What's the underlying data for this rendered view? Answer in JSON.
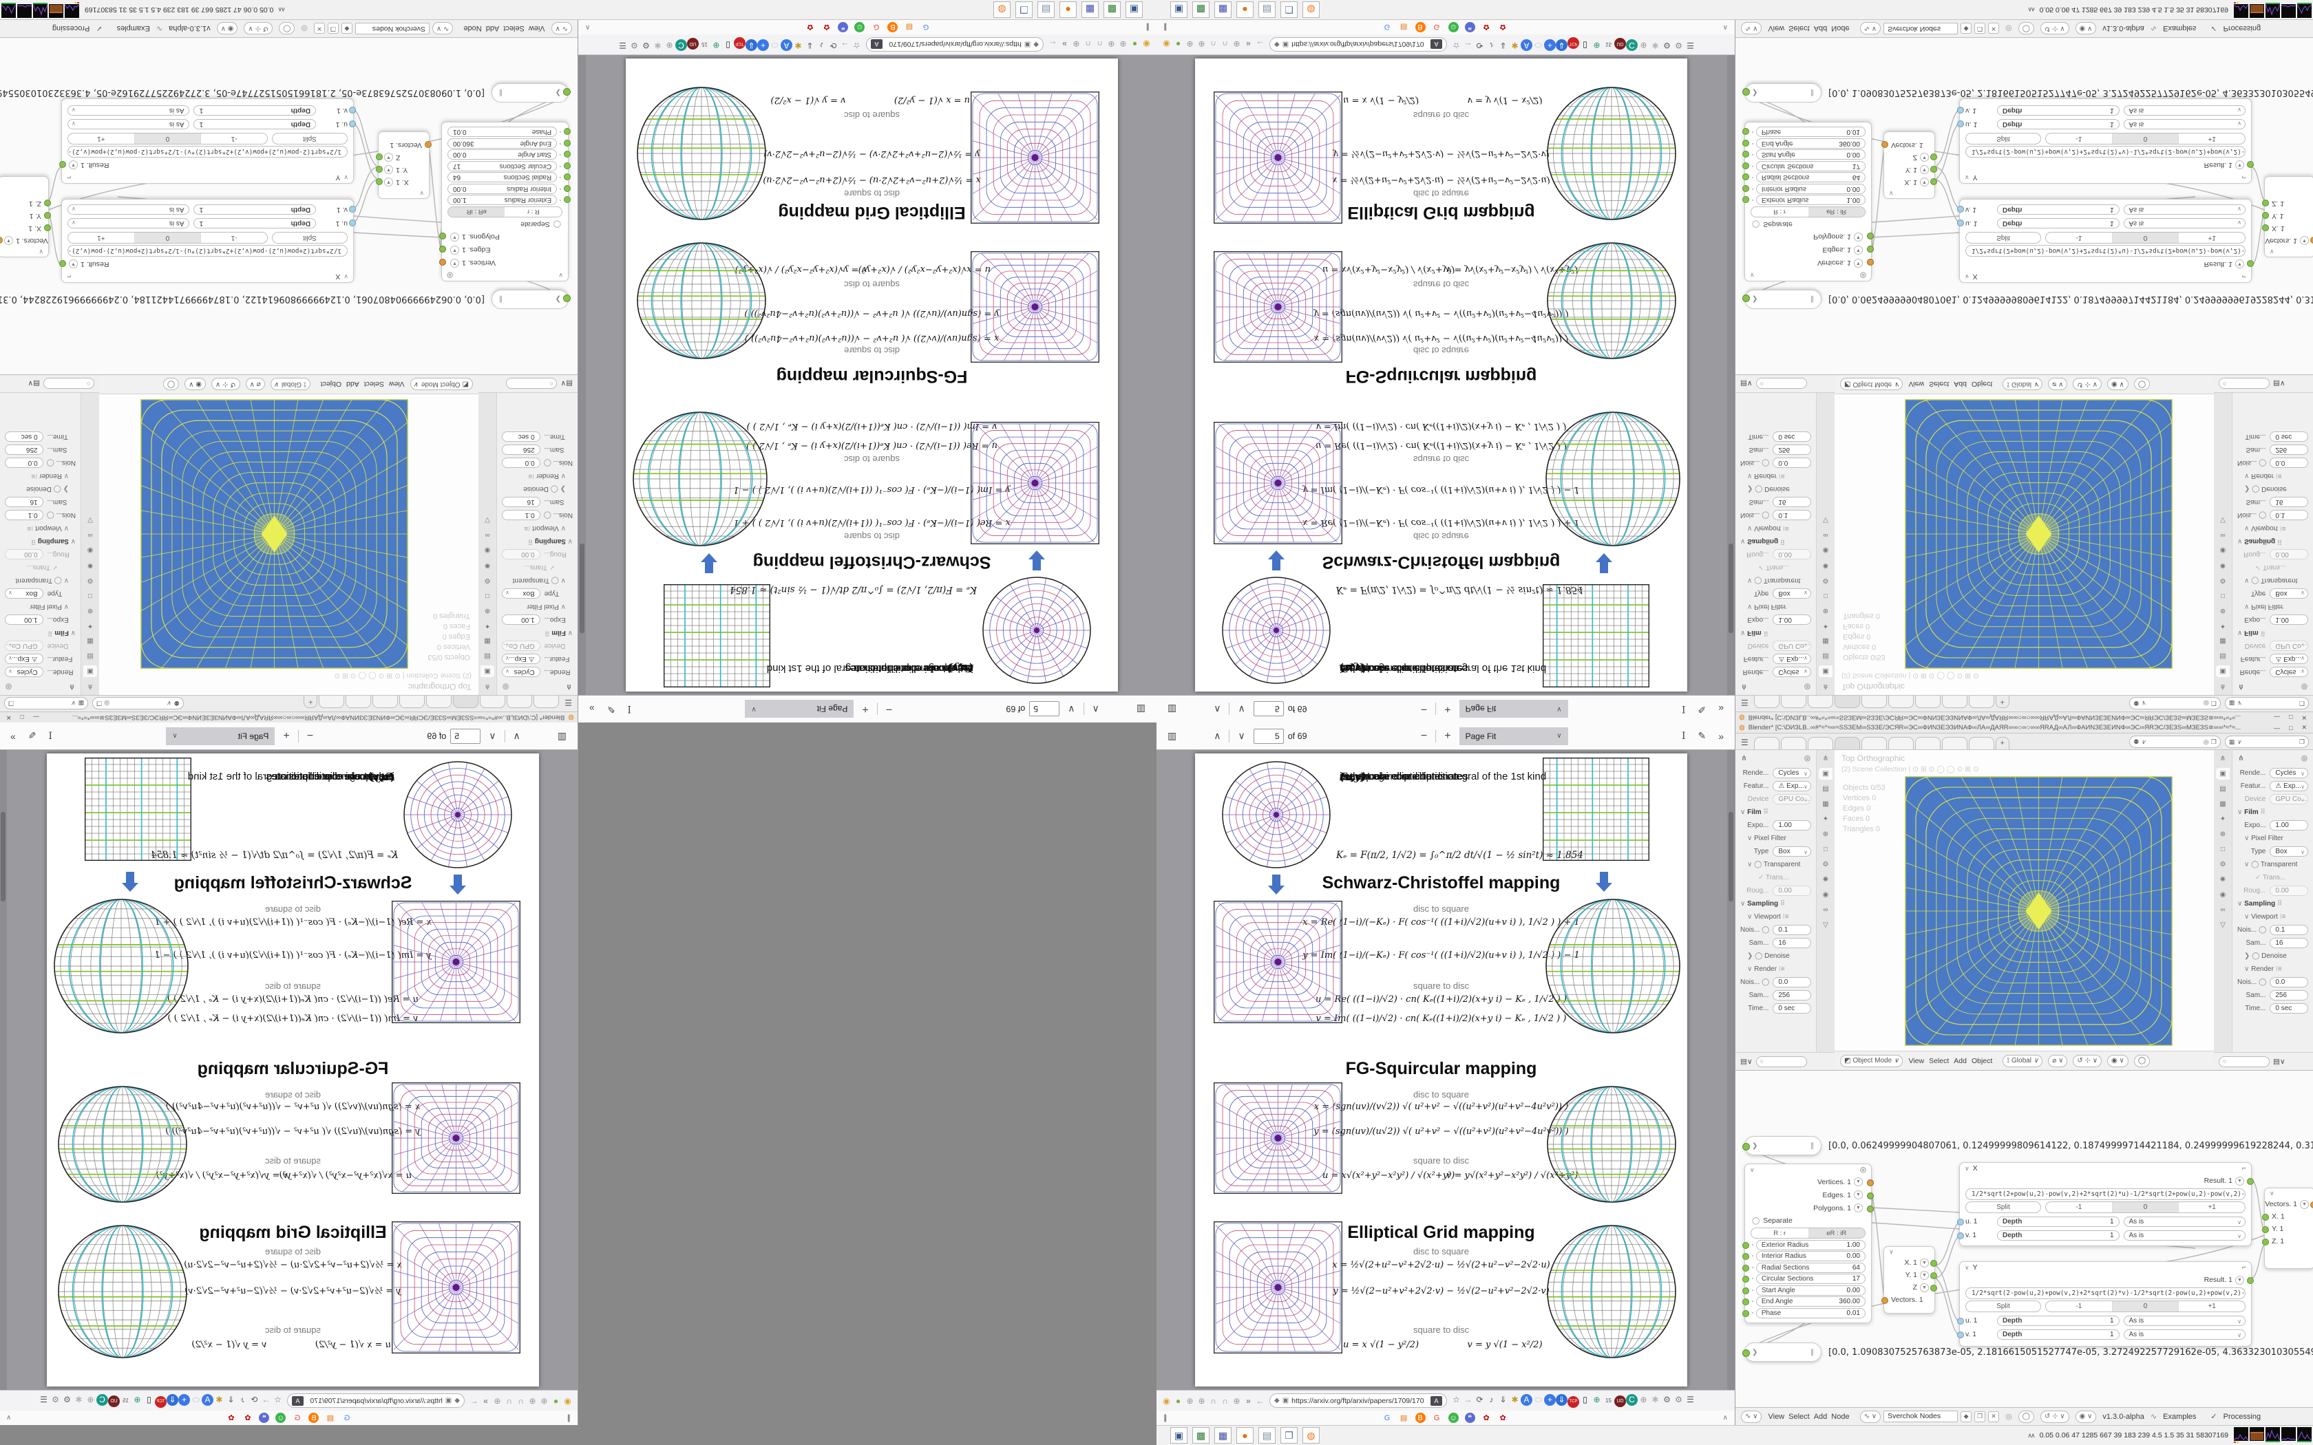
{
  "pdf": {
    "toolbar": {
      "page": "5",
      "of": "of 69",
      "fit": "Page Fit"
    },
    "page": {
      "hdr": [
        {
          "b": "(u,v)",
          "r": "  are circular disc coordinates"
        },
        {
          "b": "(x,y)",
          "r": "  are square coordinates"
        },
        {
          "b": "F",
          "r": "  is the Legendre elliptic integral of the 1st kind"
        },
        {
          "b": "cn",
          "r": "  is a Jacobi elliptic function"
        }
      ],
      "ke": "Kₑ = F(π/2, 1/√2) = ∫₀^π/2 dt/√(1 − ½ sin²t)  ≈ 1.854",
      "sections": [
        {
          "title": "Schwarz-Christoffel mapping",
          "d2s": "disc to square",
          "s2d": "square to disc",
          "fx": "x = Re( (1−i)/(−Kₑ) · F( cos⁻¹( ((1+i)/√2)(u+v i) ), 1/√2 ) ) + 1",
          "fy": "y = Im( (1−i)/(−Kₑ) · F( cos⁻¹( ((1+i)/√2)(u+v i) ), 1/√2 ) ) − 1",
          "fu": "u = Re( ((1−i)/√2) · cn( Kₑ((1+i)/2)(x+y i) − Kₑ , 1/√2 ) )",
          "fv": "v = Im( ((1−i)/√2) · cn( Kₑ((1+i)/2)(x+y i) − Kₑ , 1/√2 ) )"
        },
        {
          "title": "FG-Squircular mapping",
          "d2s": "disc to square",
          "s2d": "square to disc",
          "fx": "x = (sgn(uv)/(v√2)) √( u²+v² − √((u²+v²)(u²+v²−4u²v²)) )",
          "fy": "y = (sgn(uv)/(u√2)) √( u²+v² − √((u²+v²)(u²+v²−4u²v²)) )",
          "fu": "u = x√(x²+y²−x²y²) / √(x²+y²)",
          "fv": "v = y√(x²+y²−x²y²) / √(x²+y²)"
        },
        {
          "title": "Elliptical Grid mapping",
          "d2s": "disc to square",
          "s2d": "square to disc",
          "fx": "x = ½√(2+u²−v²+2√2·u) − ½√(2+u²−v²−2√2·u)",
          "fy": "y = ½√(2−u²+v²+2√2·v) − ½√(2−u²+v²−2√2·v)",
          "fu": "u = x √(1 − y²/2)",
          "fv": "v = y √(1 − x²/2)"
        }
      ]
    }
  },
  "firefox": {
    "url": "https://arxiv.org/ftp/arxiv/papers/1709/170",
    "translate_badge": "A",
    "nav_left": [
      {
        "g": "◉",
        "c": "#d9a62e"
      },
      {
        "g": "●",
        "c": "#76b043"
      },
      {
        "g": "⊕",
        "c": "#9a9a9a"
      },
      {
        "g": "⊕",
        "c": "#9a9a9a"
      },
      {
        "g": "∩",
        "c": "#8a8a8a"
      },
      {
        "g": "∩",
        "c": "#8a8a8a"
      },
      {
        "g": "⊕",
        "c": "#9a9a9a"
      },
      {
        "g": "»",
        "c": "#666666"
      },
      {
        "g": "←",
        "c": "#9a9a9a"
      }
    ],
    "nav_right": [
      {
        "g": "☆",
        "c": "#666"
      },
      {
        "g": "→",
        "c": "#9a9a9a"
      },
      {
        "g": "⟳",
        "c": "#555"
      },
      {
        "g": "♪",
        "c": "#555"
      },
      {
        "g": "⇓",
        "c": "#555"
      },
      {
        "g": "✱",
        "c": "#c49a2a"
      },
      {
        "g": "A",
        "c": "#fff",
        "b": "#3b78e7"
      },
      {
        "g": "⬭",
        "c": "#bbb"
      },
      {
        "g": "+",
        "c": "#fff",
        "b": "#3b78e7"
      },
      {
        "g": "⇓",
        "c": "#fff",
        "b": "#2f6fd6"
      },
      {
        "g": "TCP",
        "c": "#fff",
        "b": "#cc2222",
        "s": "6px"
      },
      {
        "g": "▯",
        "c": "#222"
      },
      {
        "g": "⊕",
        "c": "#2a9a6a"
      },
      {
        "g": "15",
        "c": "#555",
        "s": "8px"
      },
      {
        "g": "UD",
        "c": "#fff",
        "b": "#7a1f1f",
        "s": "7px"
      },
      {
        "g": "C",
        "c": "#fff",
        "b": "#1a9988"
      },
      {
        "g": "⊕",
        "c": "#999"
      },
      {
        "g": "✱",
        "c": "#b7b7b7"
      },
      {
        "g": "⚙",
        "c": "#666"
      },
      {
        "g": "⚙",
        "c": "#888"
      },
      {
        "g": "☰",
        "c": "#555"
      }
    ],
    "bookmarks": [
      {
        "g": "G",
        "c": "#4285f4"
      },
      {
        "g": "▤",
        "c": "#e8740c"
      },
      {
        "g": "B",
        "c": "#fff",
        "b": "#ff7b00"
      },
      {
        "g": "G",
        "c": "#ea4335"
      },
      {
        "g": "☺",
        "c": "#fff",
        "b": "#3bb54a"
      },
      {
        "g": "❝",
        "c": "#fff",
        "b": "#5b6bd6"
      },
      {
        "g": "✿",
        "c": "#c00000"
      },
      {
        "g": "✿",
        "c": "#c00000"
      }
    ],
    "pause_glyph": "∥",
    "collapse_glyph": "∧"
  },
  "taskbar": {
    "apps": [
      {
        "g": "▣",
        "c": "#3a5a8c"
      },
      {
        "g": "▩",
        "c": "#2f7d32"
      },
      {
        "g": "▦",
        "c": "#3949ab"
      },
      {
        "g": "●",
        "c": "#e8710a"
      },
      {
        "g": "▤",
        "c": "#7a8aa0"
      },
      {
        "g": "❐",
        "c": "#5472a8"
      },
      {
        "g": "◍",
        "c": "#ee7722"
      }
    ],
    "stats": "0.05 0.06   47   1285 667   39   183   239   4.5   1.5   35   31   58307169"
  },
  "blender": {
    "title": "Blender* [C:\\DИЗLB..∞#*≈*≈∞≈SSЗEM∞SЗЗE/ЭСЯR∞ЭС∞ФИNЗЕЭЗИNАФ∞ЛА∞ДАЯR∞∞○∞○∞∞ЯRАД∞АЛ∞ФАИNЗЕЗЕИNФ∞ЭС∞ЯRЭС/ЗЕЗS∞МЗЕЗS≅∞∞*≈*≈...",
    "tabs": [
      "",
      "",
      "",
      "",
      "",
      "",
      "",
      "",
      ""
    ],
    "props": {
      "tabs": [
        "⋔",
        "▣",
        "▤",
        "▦",
        "✦",
        "⊕",
        "□",
        "⚙",
        "✺",
        "◉",
        "∞",
        "▽"
      ],
      "rows": [
        {
          "k": "dd",
          "l": "Rende...",
          "v": "Cycles"
        },
        {
          "k": "dd",
          "l": "Featur...",
          "v": "⚠ Exp..."
        },
        {
          "k": "dd dis",
          "l": "Device",
          "v": "GPU Co..."
        },
        {
          "k": "sec",
          "l": "Film"
        },
        {
          "k": "num",
          "l": "Expo...",
          "v": "1.00"
        },
        {
          "k": "sub",
          "l": "Pixel Filter"
        },
        {
          "k": "dd",
          "l": "Type",
          "v": "Box"
        },
        {
          "k": "sub chk",
          "l": "Transparent"
        },
        {
          "k": "chk2 dis",
          "l": "Trans..."
        },
        {
          "k": "num dis",
          "l": "Roug...",
          "v": "0.00"
        },
        {
          "k": "sec",
          "l": "Sampling"
        },
        {
          "k": "sub lst",
          "l": "Viewport"
        },
        {
          "k": "numc",
          "l": "Nois...",
          "v": "0.1"
        },
        {
          "k": "num",
          "l": "Sam...",
          "v": "16"
        },
        {
          "k": "sub chk cl",
          "l": "Denoise"
        },
        {
          "k": "sub lst",
          "l": "Render"
        },
        {
          "k": "numc",
          "l": "Nois...",
          "v": "0.0"
        },
        {
          "k": "num",
          "l": "Sam...",
          "v": "256"
        },
        {
          "k": "num",
          "l": "Time...",
          "v": "0 sec"
        }
      ]
    },
    "viewport": {
      "mode": "Top Orthographic",
      "collection": "(2) Scene Collection | ⊙ ⊞ ⊙ ◯ ◯ ⊙ ⊞ ⊙",
      "stats": [
        "Objects   0/53",
        "Vertices   0",
        "Edges   0",
        "Faces   0",
        "Triangles   0"
      ],
      "footer_mode": "Object Mode",
      "footer_menus": [
        "View",
        "Select",
        "Add",
        "Object"
      ],
      "orient": "Global"
    },
    "nodes": {
      "f1": "[0.0, 0.06249999904807061, 0.12499999809614122, 0.18749999714421184, 0.24999999619228244, 0.31249999524035305, 0.374",
      "f2": "[0.0, 1.0908307525763873e-05, 2.1816615051527747e-05, 3.272492257729162e-05, 4.363323010305549e-05, 5.454153762881936",
      "torus": {
        "outputs": [
          {
            "l": "Vertices. 1",
            "c": "#e09a3c"
          },
          {
            "l": "Edges. 1",
            "c": "#8bc34a"
          },
          {
            "l": "Polygons. 1",
            "c": "#8bc34a"
          }
        ],
        "separate": "Separate",
        "toggle": [
          "R : r",
          "eR : iR"
        ],
        "fields": [
          {
            "l": "Exterior Radius",
            "v": "1.00"
          },
          {
            "l": "Interior Radius",
            "v": "0.00"
          },
          {
            "l": "Radial Sections",
            "v": "64"
          },
          {
            "l": "Circular Sections",
            "v": "17"
          },
          {
            "l": "Start Angle",
            "v": "0.00"
          },
          {
            "l": "End Angle",
            "v": "360.00"
          },
          {
            "l": "Phase",
            "v": "0.01"
          }
        ]
      },
      "fx": {
        "title": "X",
        "result": "Result. 1",
        "expr": "1/2*sqrt(2+pow(u,2)-pow(v,2)+2*sqrt(2)*u)-1/2*sqrt(2+pow(u,2)-pow(v,2)-2*sqrt(2)*u)",
        "split": "Split",
        "m1": "-1",
        "z": "0",
        "p1": "+1",
        "u": "u. 1",
        "v": "v. 1",
        "depth": "Depth",
        "one": "1",
        "asis": "As is"
      },
      "fy": {
        "title": "Y",
        "result": "Result. 1",
        "expr": "1/2*sqrt(2-pow(u,2)+pow(v,2)+2*sqrt(2)*v)-1/2*sqrt(2-pow(u,2)+pow(v,2)-2*sqrt(2)*v)",
        "split": "Split",
        "m1": "-1",
        "z": "0",
        "p1": "+1",
        "u": "u. 1",
        "v": "v. 1",
        "depth": "Depth",
        "one": "1",
        "asis": "As is"
      },
      "vec_out": {
        "rows": [
          "X. 1",
          "Y. 1",
          "Z"
        ],
        "out": "Vectors. 1"
      },
      "vec_in": {
        "inp": "Vectors. 1",
        "rows": [
          "X. 1",
          "Y. 1",
          "Z. 1"
        ]
      }
    },
    "svk": {
      "menus": [
        "View",
        "Select",
        "Add",
        "Node"
      ],
      "tree": "Sverchok Nodes",
      "version": "v1.3.0-alpha",
      "examples": "Examples",
      "processing": "Processing"
    }
  }
}
